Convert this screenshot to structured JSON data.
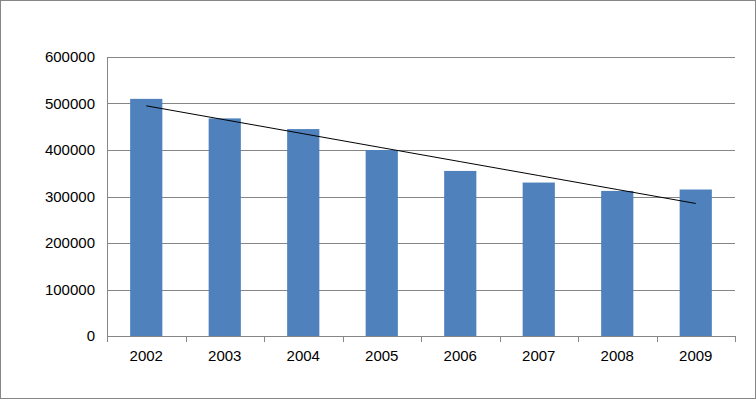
{
  "chart_data": {
    "type": "bar",
    "categories": [
      "2002",
      "2003",
      "2004",
      "2005",
      "2006",
      "2007",
      "2008",
      "2009"
    ],
    "series": [
      {
        "type": "bar",
        "color": "#4f81bd",
        "values": [
          510000,
          468000,
          445000,
          400000,
          355000,
          330000,
          312000,
          315000
        ]
      },
      {
        "type": "line",
        "color": "#000000",
        "values": [
          495000,
          465000,
          435000,
          405000,
          375000,
          345000,
          315000,
          285000
        ]
      }
    ],
    "ylim": [
      0,
      600000
    ],
    "yticks": [
      0,
      100000,
      200000,
      300000,
      400000,
      500000,
      600000
    ],
    "grid": true
  }
}
